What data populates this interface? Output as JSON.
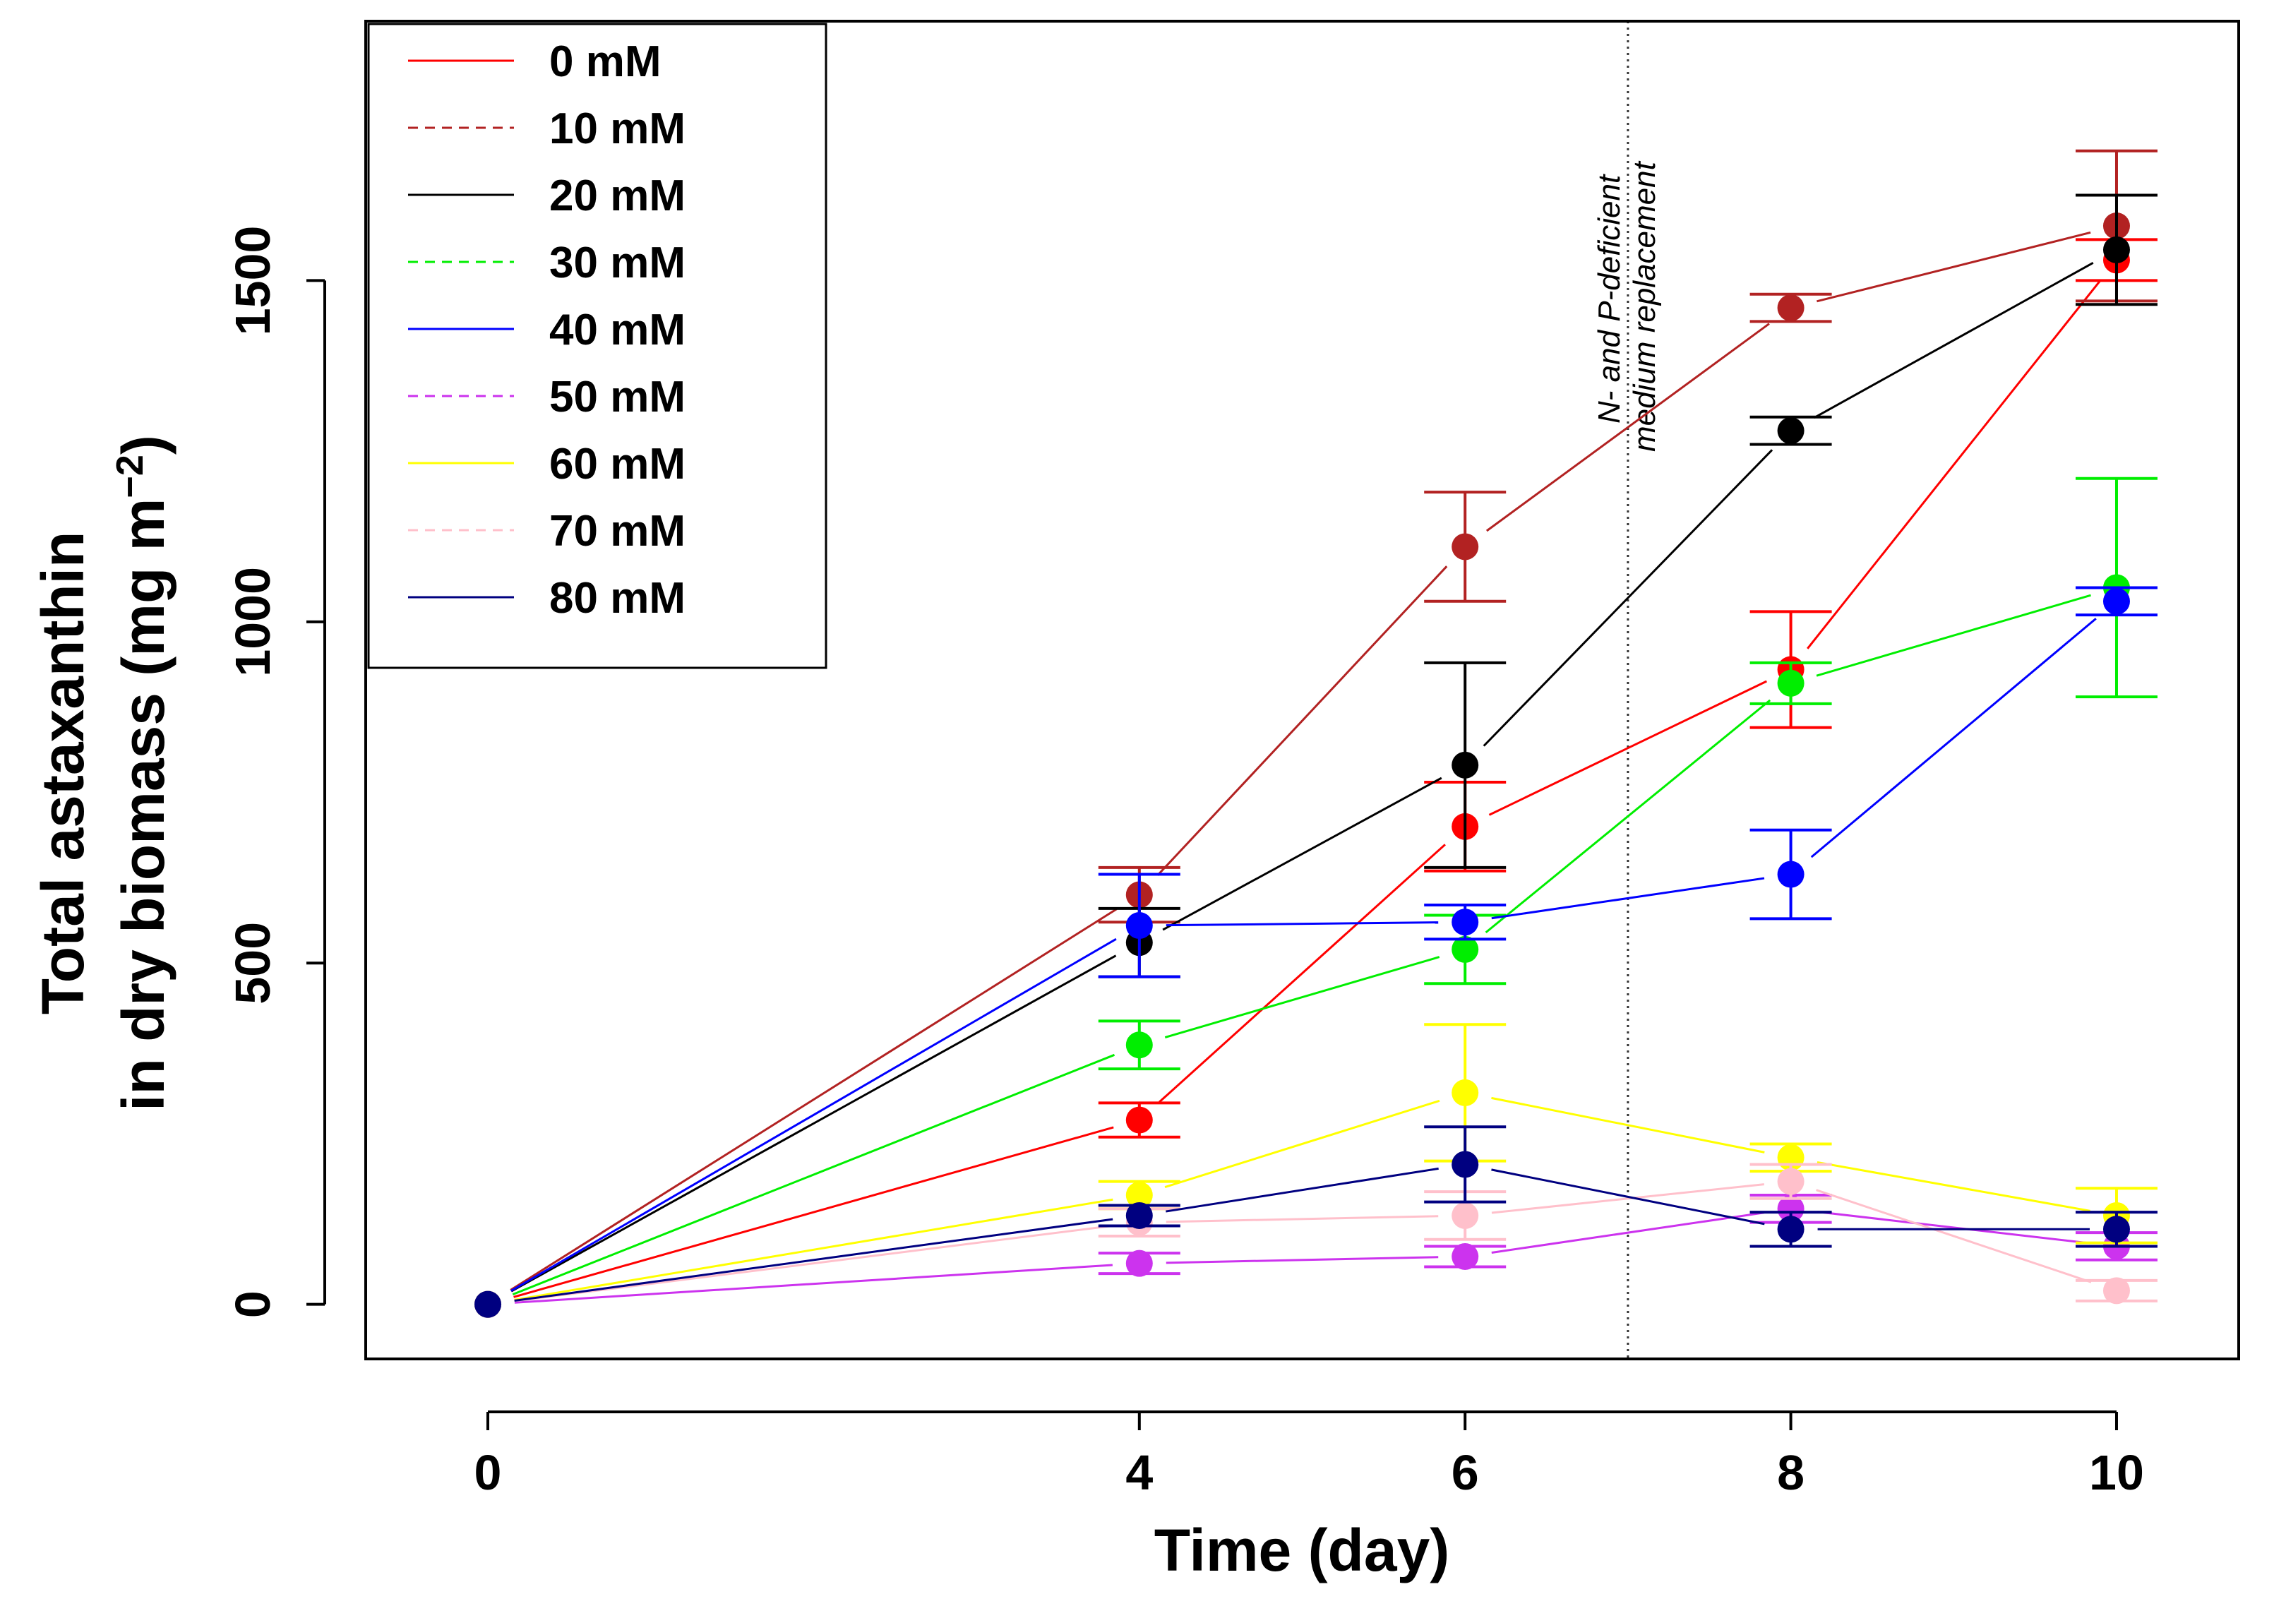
{
  "chart_data": {
    "type": "line",
    "xlabel": "Time (day)",
    "ylabel_line1": "Total astaxanthin",
    "ylabel_line2_prefix": "in dry biomass (mg m",
    "ylabel_line2_sup": "−2",
    "ylabel_line2_suffix": ")",
    "x_ticks": [
      "0",
      "4",
      "6",
      "8",
      "10"
    ],
    "y_ticks": [
      "0",
      "500",
      "1000",
      "1500"
    ],
    "xlim": [
      -0.75,
      10.75
    ],
    "ylim": [
      -80,
      1880
    ],
    "x": [
      0,
      4,
      6,
      8,
      10
    ],
    "annotation_line1": "N- and P-deficient",
    "annotation_line2": "medium replacement",
    "annotation_x": 7,
    "legend_position": "top-left",
    "series": [
      {
        "name": "0 mM",
        "color": "#ff0000",
        "dash": false,
        "values": [
          0,
          270,
          700,
          930,
          1530
        ],
        "errors": [
          0,
          25,
          65,
          85,
          30
        ]
      },
      {
        "name": "10 mM",
        "color": "#b22222",
        "dash": true,
        "values": [
          0,
          600,
          1110,
          1460,
          1580
        ],
        "errors": [
          0,
          40,
          80,
          20,
          110
        ]
      },
      {
        "name": "20 mM",
        "color": "#000000",
        "dash": false,
        "values": [
          0,
          530,
          790,
          1280,
          1545
        ],
        "errors": [
          0,
          50,
          150,
          20,
          80
        ]
      },
      {
        "name": "30 mM",
        "color": "#00ee00",
        "dash": true,
        "values": [
          0,
          380,
          520,
          910,
          1050
        ],
        "errors": [
          0,
          35,
          50,
          30,
          160
        ]
      },
      {
        "name": "40 mM",
        "color": "#0000ff",
        "dash": false,
        "values": [
          0,
          555,
          560,
          630,
          1030
        ],
        "errors": [
          0,
          75,
          25,
          65,
          20
        ]
      },
      {
        "name": "50 mM",
        "color": "#cc33ee",
        "dash": true,
        "values": [
          0,
          60,
          70,
          140,
          85
        ],
        "errors": [
          0,
          15,
          15,
          20,
          20
        ]
      },
      {
        "name": "60 mM",
        "color": "#ffff00",
        "dash": false,
        "values": [
          0,
          160,
          310,
          215,
          130
        ],
        "errors": [
          0,
          20,
          100,
          20,
          40
        ]
      },
      {
        "name": "70 mM",
        "color": "#ffc0cb",
        "dash": true,
        "values": [
          0,
          120,
          130,
          180,
          20
        ],
        "errors": [
          0,
          20,
          35,
          25,
          15
        ]
      },
      {
        "name": "80 mM",
        "color": "#000080",
        "dash": false,
        "values": [
          0,
          130,
          205,
          110,
          110
        ],
        "errors": [
          0,
          15,
          55,
          25,
          25
        ]
      }
    ]
  }
}
